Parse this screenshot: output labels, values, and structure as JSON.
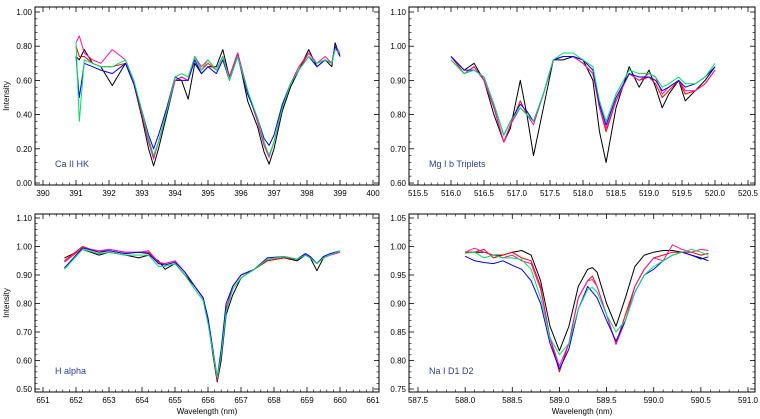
{
  "series_colors": {
    "black": "#000000",
    "red": "#ff0000",
    "magenta": "#ff10a0",
    "blue": "#0000ff",
    "green": "#00e060"
  },
  "chart_data": [
    {
      "type": "line",
      "title": "Ca II HK",
      "xlabel": "",
      "ylabel": "Intensity",
      "xlim": [
        390,
        400
      ],
      "ylim": [
        0,
        1
      ],
      "xticks": [
        390,
        391,
        392,
        393,
        394,
        395,
        396,
        397,
        398,
        399,
        400
      ],
      "xtick_labels": [
        "390",
        "391",
        "392",
        "393",
        "394",
        "395",
        "396",
        "397",
        "398",
        "399",
        "400"
      ],
      "yticks": [
        0,
        0.2,
        0.4,
        0.6,
        0.8,
        1.0
      ],
      "ytick_labels": [
        "0.00",
        "0.20",
        "0.40",
        "0.60",
        "0.80",
        "1.00"
      ],
      "x": [
        391.0,
        391.1,
        391.25,
        391.5,
        391.75,
        392.1,
        392.5,
        392.75,
        393.0,
        393.2,
        393.35,
        393.5,
        393.75,
        394.0,
        394.2,
        394.4,
        394.6,
        394.8,
        395.0,
        395.25,
        395.45,
        395.65,
        395.9,
        396.2,
        396.5,
        396.7,
        396.85,
        397.0,
        397.25,
        397.5,
        397.75,
        398.05,
        398.3,
        398.55,
        398.75,
        398.85,
        399.0
      ],
      "series": [
        {
          "name": "black",
          "values": [
            0.74,
            0.72,
            0.78,
            0.7,
            0.68,
            0.57,
            0.7,
            0.58,
            0.38,
            0.2,
            0.1,
            0.2,
            0.4,
            0.6,
            0.6,
            0.49,
            0.7,
            0.64,
            0.68,
            0.68,
            0.78,
            0.62,
            0.76,
            0.48,
            0.33,
            0.18,
            0.11,
            0.2,
            0.42,
            0.56,
            0.66,
            0.78,
            0.68,
            0.72,
            0.68,
            0.82,
            0.74
          ]
        },
        {
          "name": "red",
          "values": [
            0.8,
            0.74,
            0.74,
            0.7,
            0.68,
            0.68,
            0.7,
            0.58,
            0.4,
            0.24,
            0.15,
            0.24,
            0.42,
            0.6,
            0.62,
            0.6,
            0.74,
            0.66,
            0.7,
            0.66,
            0.74,
            0.62,
            0.76,
            0.54,
            0.36,
            0.22,
            0.16,
            0.24,
            0.44,
            0.58,
            0.66,
            0.76,
            0.7,
            0.72,
            0.7,
            0.8,
            0.75
          ]
        },
        {
          "name": "magenta",
          "values": [
            0.82,
            0.86,
            0.76,
            0.72,
            0.7,
            0.78,
            0.72,
            0.6,
            0.4,
            0.24,
            0.14,
            0.24,
            0.42,
            0.6,
            0.62,
            0.6,
            0.74,
            0.68,
            0.72,
            0.66,
            0.74,
            0.62,
            0.76,
            0.54,
            0.36,
            0.22,
            0.15,
            0.24,
            0.44,
            0.58,
            0.68,
            0.76,
            0.7,
            0.74,
            0.7,
            0.8,
            0.76
          ]
        },
        {
          "name": "blue",
          "values": [
            0.74,
            0.5,
            0.7,
            0.68,
            0.66,
            0.64,
            0.7,
            0.58,
            0.42,
            0.28,
            0.2,
            0.28,
            0.44,
            0.62,
            0.6,
            0.6,
            0.72,
            0.64,
            0.68,
            0.64,
            0.72,
            0.6,
            0.74,
            0.52,
            0.38,
            0.26,
            0.22,
            0.28,
            0.46,
            0.58,
            0.66,
            0.74,
            0.68,
            0.72,
            0.7,
            0.8,
            0.74
          ]
        },
        {
          "name": "green",
          "values": [
            0.82,
            0.36,
            0.72,
            0.7,
            0.68,
            0.68,
            0.72,
            0.6,
            0.42,
            0.26,
            0.16,
            0.24,
            0.42,
            0.62,
            0.64,
            0.62,
            0.74,
            0.66,
            0.72,
            0.66,
            0.74,
            0.6,
            0.74,
            0.54,
            0.38,
            0.24,
            0.16,
            0.24,
            0.44,
            0.58,
            0.66,
            0.74,
            0.7,
            0.72,
            0.7,
            0.78,
            0.76
          ]
        }
      ]
    },
    {
      "type": "line",
      "title": "Mg I b Triplets",
      "xlabel": "",
      "ylabel": "",
      "xlim": [
        515.5,
        520.5
      ],
      "ylim": [
        0.6,
        1.1
      ],
      "xticks": [
        515.5,
        516.0,
        516.5,
        517.0,
        517.5,
        518.0,
        518.5,
        519.0,
        519.5,
        520.0,
        520.5
      ],
      "xtick_labels": [
        "515.5",
        "516.0",
        "516.5",
        "517.0",
        "517.5",
        "518.0",
        "518.5",
        "519.0",
        "519.5",
        "520.0",
        "520.5"
      ],
      "yticks": [
        0.6,
        0.7,
        0.8,
        0.9,
        1.0,
        1.1
      ],
      "ytick_labels": [
        "0.60",
        "0.70",
        "0.80",
        "0.90",
        "1.00",
        "1.10"
      ],
      "x": [
        516.0,
        516.2,
        516.35,
        516.5,
        516.65,
        516.8,
        516.9,
        517.05,
        517.15,
        517.25,
        517.4,
        517.55,
        517.7,
        517.85,
        518.0,
        518.15,
        518.25,
        518.35,
        518.5,
        518.7,
        518.85,
        519.0,
        519.1,
        519.2,
        519.3,
        519.45,
        519.55,
        519.7,
        519.85,
        520.0
      ],
      "series": [
        {
          "name": "black",
          "values": [
            0.97,
            0.93,
            0.95,
            0.9,
            0.8,
            0.72,
            0.76,
            0.9,
            0.8,
            0.68,
            0.82,
            0.96,
            0.96,
            0.97,
            0.96,
            0.9,
            0.75,
            0.66,
            0.82,
            0.94,
            0.88,
            0.93,
            0.88,
            0.82,
            0.86,
            0.9,
            0.84,
            0.87,
            0.9,
            0.94
          ]
        },
        {
          "name": "red",
          "values": [
            0.97,
            0.92,
            0.94,
            0.9,
            0.82,
            0.72,
            0.77,
            0.84,
            0.8,
            0.78,
            0.86,
            0.96,
            0.97,
            0.97,
            0.95,
            0.92,
            0.82,
            0.75,
            0.84,
            0.92,
            0.9,
            0.91,
            0.89,
            0.85,
            0.87,
            0.9,
            0.86,
            0.87,
            0.89,
            0.93
          ]
        },
        {
          "name": "magenta",
          "values": [
            0.96,
            0.92,
            0.94,
            0.9,
            0.82,
            0.72,
            0.77,
            0.82,
            0.8,
            0.77,
            0.86,
            0.96,
            0.97,
            0.97,
            0.95,
            0.92,
            0.82,
            0.76,
            0.84,
            0.92,
            0.9,
            0.92,
            0.91,
            0.86,
            0.88,
            0.9,
            0.87,
            0.87,
            0.89,
            0.93
          ]
        },
        {
          "name": "blue",
          "values": [
            0.97,
            0.93,
            0.93,
            0.91,
            0.83,
            0.74,
            0.78,
            0.83,
            0.81,
            0.78,
            0.86,
            0.96,
            0.97,
            0.97,
            0.96,
            0.93,
            0.83,
            0.77,
            0.85,
            0.92,
            0.91,
            0.91,
            0.9,
            0.87,
            0.88,
            0.9,
            0.88,
            0.89,
            0.91,
            0.94
          ]
        },
        {
          "name": "green",
          "values": [
            0.96,
            0.92,
            0.93,
            0.91,
            0.83,
            0.74,
            0.78,
            0.82,
            0.8,
            0.78,
            0.86,
            0.96,
            0.98,
            0.98,
            0.96,
            0.94,
            0.84,
            0.78,
            0.86,
            0.93,
            0.92,
            0.92,
            0.91,
            0.88,
            0.89,
            0.91,
            0.89,
            0.89,
            0.91,
            0.95
          ]
        }
      ]
    },
    {
      "type": "line",
      "title": "H alpha",
      "xlabel": "Wavelength (nm)",
      "ylabel": "Intensity",
      "xlim": [
        651,
        661
      ],
      "ylim": [
        0.5,
        1.1
      ],
      "xticks": [
        651,
        652,
        653,
        654,
        655,
        656,
        657,
        658,
        659,
        660,
        661
      ],
      "xtick_labels": [
        "651",
        "652",
        "653",
        "654",
        "655",
        "656",
        "657",
        "658",
        "659",
        "660",
        "661"
      ],
      "yticks": [
        0.5,
        0.6,
        0.7,
        0.8,
        0.9,
        1.0,
        1.1
      ],
      "ytick_labels": [
        "0.50",
        "0.60",
        "0.70",
        "0.80",
        "0.90",
        "1.00",
        "1.10"
      ],
      "x": [
        651.65,
        652.2,
        652.7,
        653.0,
        653.5,
        653.9,
        654.2,
        654.5,
        654.7,
        655.0,
        655.3,
        655.6,
        655.85,
        656.0,
        656.15,
        656.28,
        656.4,
        656.55,
        656.75,
        657.0,
        657.4,
        657.8,
        658.3,
        658.7,
        658.95,
        659.1,
        659.3,
        659.5,
        659.7,
        660.0
      ],
      "series": [
        {
          "name": "black",
          "values": [
            0.96,
            0.99,
            0.97,
            0.98,
            0.97,
            0.96,
            0.97,
            0.95,
            0.92,
            0.94,
            0.9,
            0.86,
            0.82,
            0.74,
            0.62,
            0.525,
            0.6,
            0.76,
            0.83,
            0.89,
            0.92,
            0.95,
            0.96,
            0.95,
            0.97,
            0.96,
            0.915,
            0.96,
            0.97,
            0.98
          ]
        },
        {
          "name": "red",
          "values": [
            0.95,
            1.0,
            0.98,
            0.99,
            0.98,
            0.98,
            0.98,
            0.94,
            0.94,
            0.95,
            0.91,
            0.86,
            0.82,
            0.74,
            0.63,
            0.53,
            0.62,
            0.78,
            0.86,
            0.9,
            0.92,
            0.95,
            0.96,
            0.955,
            0.975,
            0.96,
            0.94,
            0.96,
            0.97,
            0.98
          ]
        },
        {
          "name": "magenta",
          "values": [
            0.945,
            0.995,
            0.985,
            0.99,
            0.98,
            0.98,
            0.985,
            0.945,
            0.94,
            0.95,
            0.91,
            0.86,
            0.82,
            0.745,
            0.63,
            0.535,
            0.62,
            0.78,
            0.86,
            0.9,
            0.92,
            0.955,
            0.965,
            0.955,
            0.975,
            0.96,
            0.94,
            0.96,
            0.97,
            0.98
          ]
        },
        {
          "name": "blue",
          "values": [
            0.925,
            0.995,
            0.98,
            0.985,
            0.975,
            0.98,
            0.975,
            0.94,
            0.935,
            0.945,
            0.91,
            0.86,
            0.82,
            0.75,
            0.64,
            0.54,
            0.64,
            0.8,
            0.86,
            0.9,
            0.92,
            0.96,
            0.965,
            0.955,
            0.975,
            0.965,
            0.94,
            0.965,
            0.975,
            0.985
          ]
        },
        {
          "name": "green",
          "values": [
            0.92,
            0.99,
            0.975,
            0.98,
            0.97,
            0.97,
            0.97,
            0.93,
            0.93,
            0.94,
            0.9,
            0.85,
            0.81,
            0.73,
            0.63,
            0.54,
            0.62,
            0.77,
            0.85,
            0.89,
            0.92,
            0.955,
            0.965,
            0.955,
            0.97,
            0.96,
            0.94,
            0.96,
            0.97,
            0.985
          ]
        }
      ]
    },
    {
      "type": "line",
      "title": "Na I D1 D2",
      "xlabel": "Wavelength (nm)",
      "ylabel": "",
      "xlim": [
        587.5,
        591.0
      ],
      "ylim": [
        0.75,
        1.05
      ],
      "xticks": [
        587.5,
        588.0,
        588.5,
        589.0,
        589.5,
        590.0,
        590.5,
        591.0
      ],
      "xtick_labels": [
        "587.5",
        "588.0",
        "588.5",
        "589.0",
        "589.5",
        "590.0",
        "590.5",
        "591.0"
      ],
      "yticks": [
        0.75,
        0.8,
        0.85,
        0.9,
        0.95,
        1.0,
        1.05
      ],
      "ytick_labels": [
        "0.75",
        "0.80",
        "0.85",
        "0.90",
        "0.95",
        "1.00",
        "1.05"
      ],
      "x": [
        588.0,
        588.1,
        588.2,
        588.3,
        588.4,
        588.5,
        588.6,
        588.7,
        588.8,
        588.9,
        589.0,
        589.1,
        589.2,
        589.3,
        589.35,
        589.4,
        589.5,
        589.6,
        589.7,
        589.8,
        589.9,
        590.0,
        590.1,
        590.2,
        590.3,
        590.4,
        590.5,
        590.58
      ],
      "series": [
        {
          "name": "black",
          "values": [
            0.99,
            0.99,
            0.99,
            0.985,
            0.985,
            0.99,
            0.993,
            0.985,
            0.94,
            0.86,
            0.817,
            0.86,
            0.93,
            0.96,
            0.963,
            0.955,
            0.9,
            0.86,
            0.91,
            0.965,
            0.985,
            0.99,
            0.993,
            0.993,
            0.99,
            0.985,
            0.98,
            0.975
          ]
        },
        {
          "name": "red",
          "values": [
            0.99,
            0.99,
            0.995,
            0.98,
            0.985,
            0.99,
            0.98,
            0.975,
            0.93,
            0.84,
            0.78,
            0.83,
            0.91,
            0.94,
            0.948,
            0.93,
            0.88,
            0.83,
            0.88,
            0.93,
            0.96,
            0.98,
            0.985,
            0.99,
            0.99,
            0.99,
            0.985,
            0.988
          ]
        },
        {
          "name": "magenta",
          "values": [
            0.99,
            0.997,
            0.99,
            0.985,
            0.98,
            0.985,
            0.975,
            0.97,
            0.925,
            0.84,
            0.79,
            0.83,
            0.91,
            0.94,
            0.942,
            0.93,
            0.88,
            0.828,
            0.87,
            0.93,
            0.96,
            0.98,
            0.975,
            1.003,
            0.995,
            0.99,
            0.995,
            0.993
          ]
        },
        {
          "name": "blue",
          "values": [
            0.983,
            0.975,
            0.972,
            0.97,
            0.975,
            0.967,
            0.96,
            0.94,
            0.9,
            0.83,
            0.785,
            0.82,
            0.89,
            0.93,
            0.92,
            0.91,
            0.87,
            0.834,
            0.87,
            0.92,
            0.95,
            0.96,
            0.975,
            0.985,
            0.99,
            0.985,
            0.978,
            0.982
          ]
        },
        {
          "name": "green",
          "values": [
            0.988,
            0.99,
            0.98,
            0.985,
            0.98,
            0.98,
            0.977,
            0.96,
            0.91,
            0.84,
            0.81,
            0.83,
            0.89,
            0.925,
            0.928,
            0.92,
            0.88,
            0.85,
            0.87,
            0.92,
            0.95,
            0.965,
            0.975,
            0.985,
            0.99,
            0.995,
            0.99,
            0.985
          ]
        }
      ]
    }
  ]
}
